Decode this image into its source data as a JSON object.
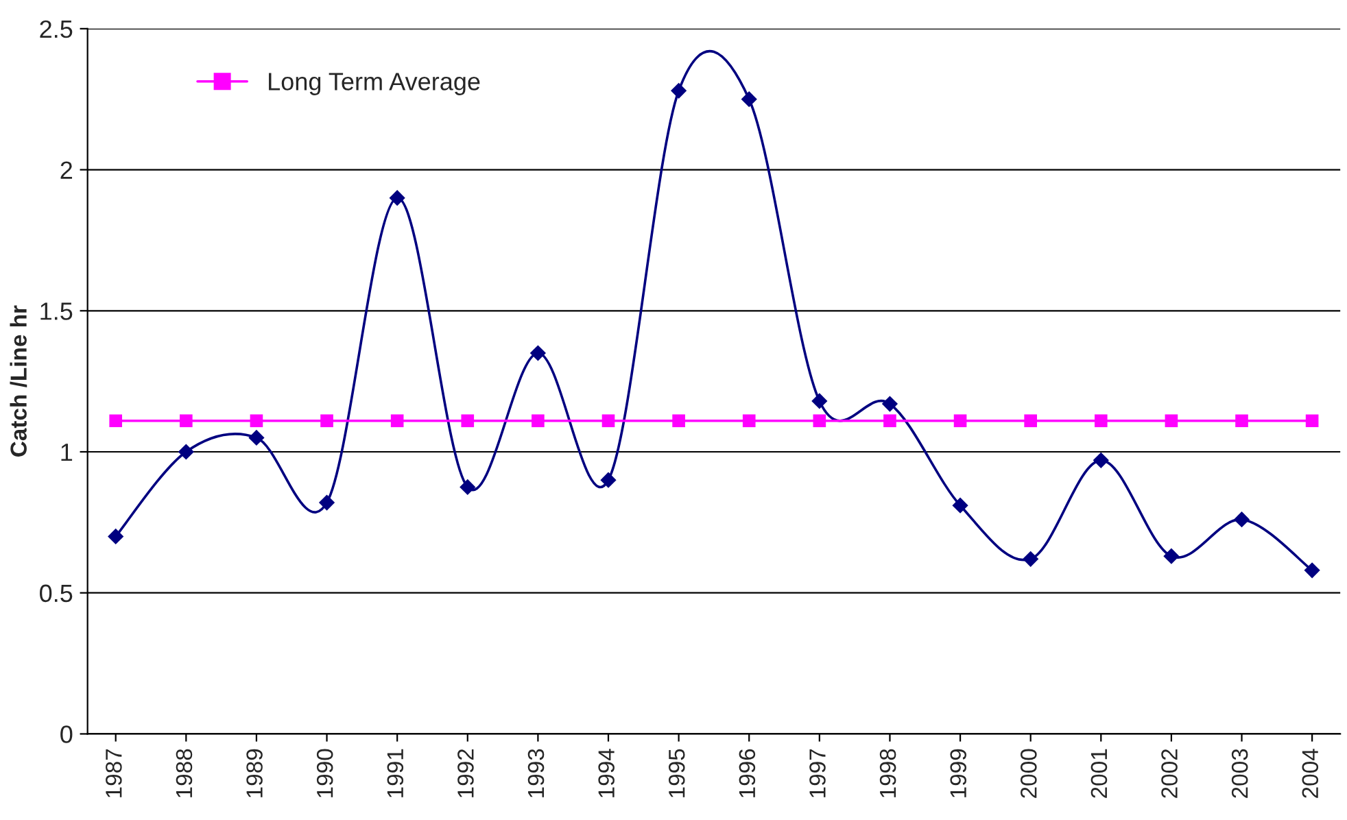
{
  "chart_data": {
    "type": "line",
    "ylabel": "Catch /Line hr",
    "categories": [
      "1987",
      "1988",
      "1989",
      "1990",
      "1991",
      "1992",
      "1993",
      "1994",
      "1995",
      "1996",
      "1997",
      "1998",
      "1999",
      "2000",
      "2001",
      "2002",
      "2003",
      "2004"
    ],
    "series": [
      {
        "color": "#000080",
        "marker": "diamond",
        "values": [
          0.7,
          1.0,
          1.05,
          0.82,
          1.9,
          0.875,
          1.35,
          0.9,
          2.28,
          2.25,
          1.18,
          1.17,
          0.81,
          0.62,
          0.97,
          0.63,
          0.76,
          0.58
        ]
      },
      {
        "name": "Long Term Average",
        "color": "#ff00ff",
        "marker": "square",
        "values": [
          1.11,
          1.11,
          1.11,
          1.11,
          1.11,
          1.11,
          1.11,
          1.11,
          1.11,
          1.11,
          1.11,
          1.11,
          1.11,
          1.11,
          1.11,
          1.11,
          1.11,
          1.11
        ]
      }
    ],
    "ylim": [
      0,
      2.5
    ],
    "yticks": [
      0,
      0.5,
      1,
      1.5,
      2,
      2.5
    ],
    "grid": "y",
    "legend": "top left"
  }
}
